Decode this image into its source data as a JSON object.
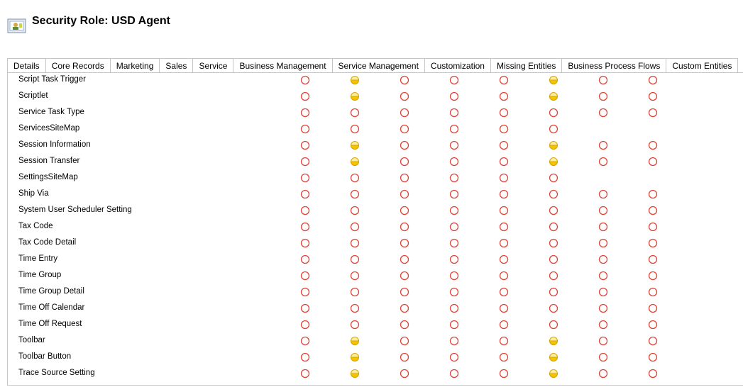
{
  "header": {
    "title": "Security Role: USD Agent"
  },
  "tabs": [
    "Details",
    "Core Records",
    "Marketing",
    "Sales",
    "Service",
    "Business Management",
    "Service Management",
    "Customization",
    "Missing Entities",
    "Business Process Flows",
    "Custom Entities"
  ],
  "active_tab": 10,
  "table": {
    "rows": [
      {
        "name": "Script Task Trigger",
        "levels": [
          "none",
          "user",
          "none",
          "none",
          "none",
          "user",
          "none",
          "none"
        ]
      },
      {
        "name": "Scriptlet",
        "levels": [
          "none",
          "user",
          "none",
          "none",
          "none",
          "user",
          "none",
          "none"
        ]
      },
      {
        "name": "Service Task Type",
        "levels": [
          "none",
          "none",
          "none",
          "none",
          "none",
          "none",
          "none",
          "none"
        ]
      },
      {
        "name": "ServicesSiteMap",
        "levels": [
          "none",
          "none",
          "none",
          "none",
          "none",
          "none",
          null,
          null
        ]
      },
      {
        "name": "Session Information",
        "levels": [
          "none",
          "user",
          "none",
          "none",
          "none",
          "user",
          "none",
          "none"
        ]
      },
      {
        "name": "Session Transfer",
        "levels": [
          "none",
          "user",
          "none",
          "none",
          "none",
          "user",
          "none",
          "none"
        ]
      },
      {
        "name": "SettingsSiteMap",
        "levels": [
          "none",
          "none",
          "none",
          "none",
          "none",
          "none",
          null,
          null
        ]
      },
      {
        "name": "Ship Via",
        "levels": [
          "none",
          "none",
          "none",
          "none",
          "none",
          "none",
          "none",
          "none"
        ]
      },
      {
        "name": "System User Scheduler Setting",
        "levels": [
          "none",
          "none",
          "none",
          "none",
          "none",
          "none",
          "none",
          "none"
        ]
      },
      {
        "name": "Tax Code",
        "levels": [
          "none",
          "none",
          "none",
          "none",
          "none",
          "none",
          "none",
          "none"
        ]
      },
      {
        "name": "Tax Code Detail",
        "levels": [
          "none",
          "none",
          "none",
          "none",
          "none",
          "none",
          "none",
          "none"
        ]
      },
      {
        "name": "Time Entry",
        "levels": [
          "none",
          "none",
          "none",
          "none",
          "none",
          "none",
          "none",
          "none"
        ]
      },
      {
        "name": "Time Group",
        "levels": [
          "none",
          "none",
          "none",
          "none",
          "none",
          "none",
          "none",
          "none"
        ]
      },
      {
        "name": "Time Group Detail",
        "levels": [
          "none",
          "none",
          "none",
          "none",
          "none",
          "none",
          "none",
          "none"
        ]
      },
      {
        "name": "Time Off Calendar",
        "levels": [
          "none",
          "none",
          "none",
          "none",
          "none",
          "none",
          "none",
          "none"
        ]
      },
      {
        "name": "Time Off Request",
        "levels": [
          "none",
          "none",
          "none",
          "none",
          "none",
          "none",
          "none",
          "none"
        ]
      },
      {
        "name": "Toolbar",
        "levels": [
          "none",
          "user",
          "none",
          "none",
          "none",
          "user",
          "none",
          "none"
        ]
      },
      {
        "name": "Toolbar Button",
        "levels": [
          "none",
          "user",
          "none",
          "none",
          "none",
          "user",
          "none",
          "none"
        ]
      },
      {
        "name": "Trace Source Setting",
        "levels": [
          "none",
          "user",
          "none",
          "none",
          "none",
          "user",
          "none",
          "none"
        ]
      }
    ]
  }
}
